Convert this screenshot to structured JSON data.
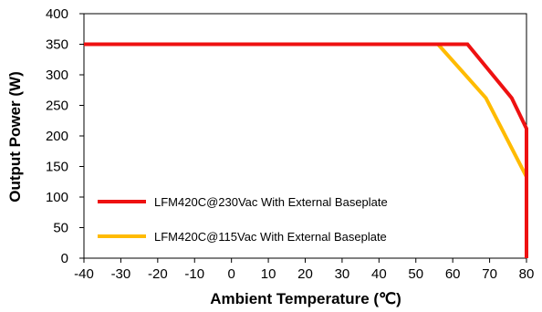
{
  "chart_data": {
    "type": "line",
    "title": "",
    "xlabel": "Ambient Temperature (℃)",
    "ylabel": "Output Power (W)",
    "xlim": [
      -40,
      80
    ],
    "ylim": [
      0,
      400
    ],
    "xticks": [
      -40,
      -30,
      -20,
      -10,
      0,
      10,
      20,
      30,
      40,
      50,
      60,
      70,
      80
    ],
    "yticks": [
      0,
      50,
      100,
      150,
      200,
      250,
      300,
      350,
      400
    ],
    "grid": false,
    "legend_position": "bottom-left",
    "series": [
      {
        "name": "LFM420C@230Vac With External Baseplate",
        "color": "#ee1111",
        "points": [
          [
            -40,
            350
          ],
          [
            64,
            350
          ],
          [
            76,
            262
          ],
          [
            80,
            212
          ],
          [
            80,
            0
          ]
        ]
      },
      {
        "name": "LFM420C@115Vac With External Baseplate",
        "color": "#ffbb00",
        "points": [
          [
            -40,
            350
          ],
          [
            56,
            350
          ],
          [
            69,
            262
          ],
          [
            80,
            133
          ],
          [
            80,
            0
          ]
        ]
      }
    ]
  }
}
